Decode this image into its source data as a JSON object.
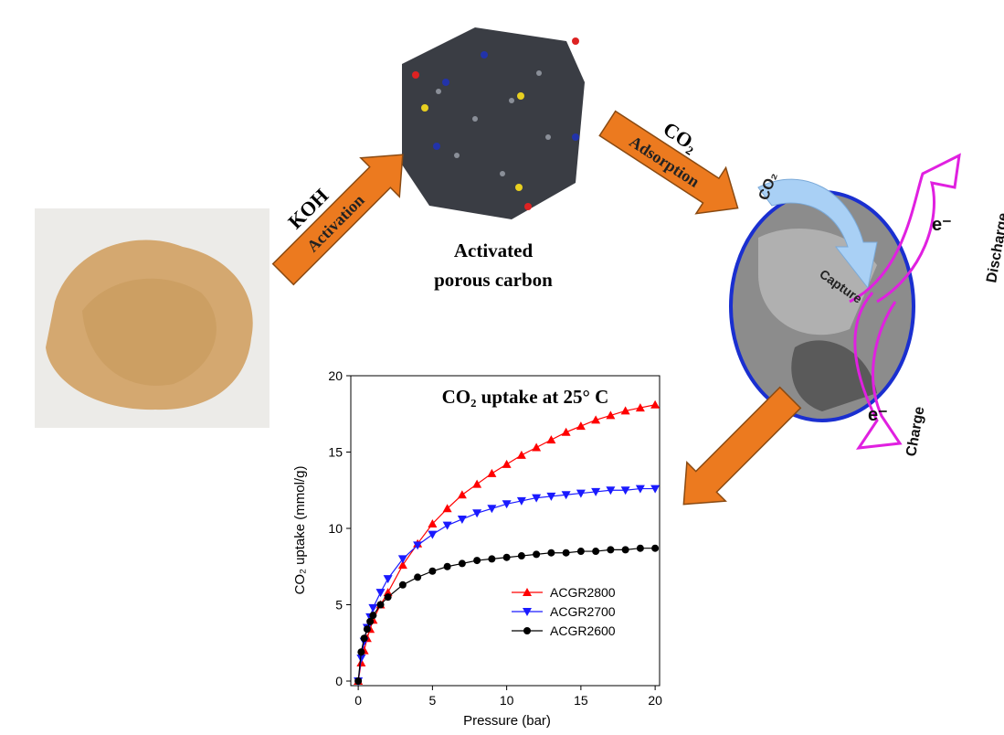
{
  "labels": {
    "koh": "KOH",
    "activation": "Activation",
    "carbon_line1": "Activated",
    "carbon_line2": "porous carbon",
    "co2_arrow": "CO₂",
    "adsorption": "Adsorption",
    "co2_capture": "CO₂",
    "capture": "Capture",
    "e_top": "e⁻",
    "discharge": "Discharge",
    "e_bottom": "e⁻",
    "charge": "Charge"
  },
  "chart_data": {
    "type": "line",
    "title": "CO₂ uptake at 25° C",
    "x_label": "Pressure (bar)",
    "y_label": "CO₂ uptake (mmol/g)",
    "xlim": [
      -0.5,
      20.3
    ],
    "ylim": [
      -0.3,
      20
    ],
    "xticks": [
      0,
      5,
      10,
      15,
      20
    ],
    "yticks": [
      0,
      5,
      10,
      15,
      20
    ],
    "legend": "lower right",
    "x": [
      0,
      0.2,
      0.4,
      0.6,
      0.8,
      1,
      1.5,
      2,
      3,
      4,
      5,
      6,
      7,
      8,
      9,
      10,
      11,
      12,
      13,
      14,
      15,
      16,
      17,
      18,
      19,
      20
    ],
    "series": [
      {
        "name": "ACGR2800",
        "color": "#ff0000",
        "marker": "triangle-up",
        "values": [
          0,
          1.2,
          2.0,
          2.8,
          3.4,
          4.0,
          5.0,
          5.8,
          7.6,
          9.0,
          10.3,
          11.3,
          12.2,
          12.9,
          13.6,
          14.2,
          14.8,
          15.3,
          15.8,
          16.3,
          16.7,
          17.1,
          17.4,
          17.7,
          17.9,
          18.1
        ]
      },
      {
        "name": "ACGR2700",
        "color": "#1a1aff",
        "marker": "triangle-down",
        "values": [
          0,
          1.5,
          2.6,
          3.5,
          4.2,
          4.8,
          5.8,
          6.7,
          8.0,
          8.9,
          9.6,
          10.2,
          10.6,
          11.0,
          11.3,
          11.6,
          11.8,
          12.0,
          12.1,
          12.2,
          12.3,
          12.4,
          12.5,
          12.5,
          12.6,
          12.6
        ]
      },
      {
        "name": "ACGR2600",
        "color": "#000000",
        "marker": "circle",
        "values": [
          0,
          1.9,
          2.8,
          3.4,
          3.9,
          4.3,
          5.0,
          5.5,
          6.3,
          6.8,
          7.2,
          7.5,
          7.7,
          7.9,
          8.0,
          8.1,
          8.2,
          8.3,
          8.4,
          8.4,
          8.5,
          8.5,
          8.6,
          8.6,
          8.7,
          8.7
        ]
      }
    ]
  }
}
